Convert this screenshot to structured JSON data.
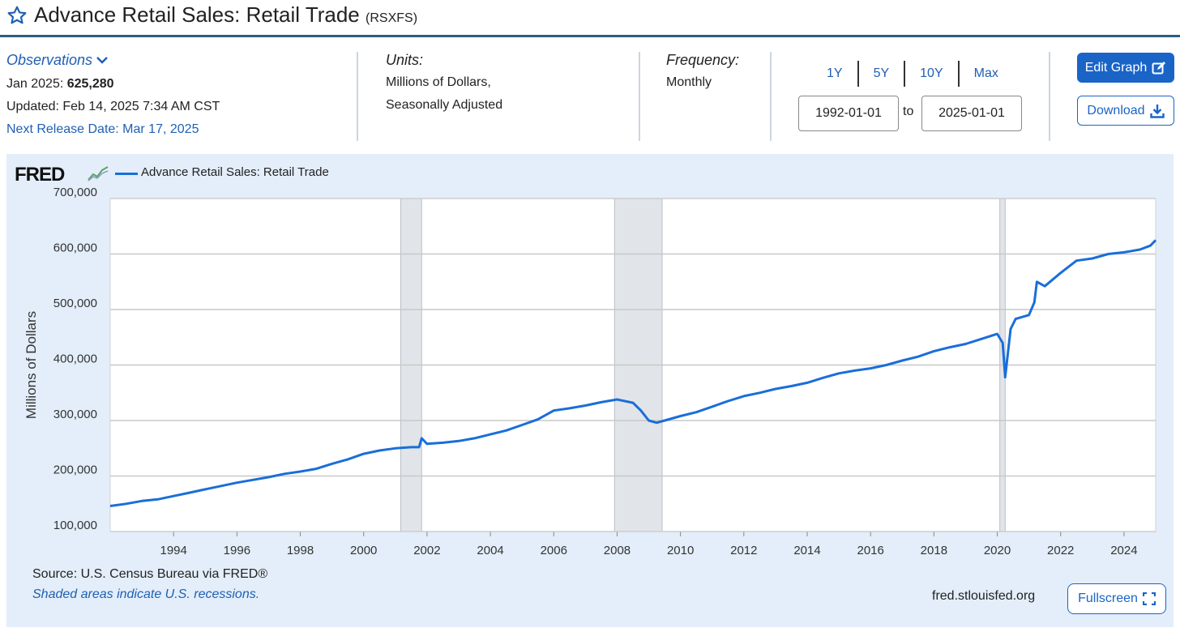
{
  "header": {
    "title": "Advance Retail Sales: Retail Trade",
    "series_id": "(RSXFS)"
  },
  "observations": {
    "label": "Observations",
    "latest_label": "Jan 2025:",
    "latest_value": "625,280",
    "updated": "Updated: Feb 14, 2025 7:34 AM CST",
    "next_release": "Next Release Date: Mar 17, 2025"
  },
  "units": {
    "label": "Units:",
    "line1": "Millions of Dollars,",
    "line2": "Seasonally Adjusted"
  },
  "frequency": {
    "label": "Frequency:",
    "value": "Monthly"
  },
  "ranges": [
    "1Y",
    "5Y",
    "10Y",
    "Max"
  ],
  "date_range": {
    "start": "1992-01-01",
    "to_label": "to",
    "end": "2025-01-01"
  },
  "buttons": {
    "edit_graph": "Edit Graph",
    "download": "Download",
    "fullscreen": "Fullscreen"
  },
  "footer": {
    "source": "Source: U.S. Census Bureau via FRED®",
    "shaded_note": "Shaded areas indicate U.S. recessions.",
    "url": "fred.stlouisfed.org"
  },
  "brand": {
    "logo_text": "FRED",
    "accent": "#1a64c8",
    "line_color": "#1a6ed8",
    "panel_bg": "#e3eefa",
    "recession_fill": "#e1e5e9"
  },
  "chart_data": {
    "type": "line",
    "title": "",
    "ylabel": "Millions of Dollars",
    "xlabel": "",
    "ylim": [
      100000,
      700000
    ],
    "xlim": [
      1992.0,
      2025.0
    ],
    "y_ticks": [
      "100,000",
      "200,000",
      "300,000",
      "400,000",
      "500,000",
      "600,000",
      "700,000"
    ],
    "x_ticks": [
      "1994",
      "1996",
      "1998",
      "2000",
      "2002",
      "2004",
      "2006",
      "2008",
      "2010",
      "2012",
      "2014",
      "2016",
      "2018",
      "2020",
      "2022",
      "2024"
    ],
    "grid": true,
    "legend": "top-left",
    "recessions": [
      [
        2001.17,
        2001.83
      ],
      [
        2007.92,
        2009.42
      ],
      [
        2020.08,
        2020.25
      ]
    ],
    "series": [
      {
        "name": "Advance Retail Sales: Retail Trade",
        "x": [
          1992.0,
          1992.5,
          1993.0,
          1993.5,
          1994.0,
          1994.5,
          1995.0,
          1995.5,
          1996.0,
          1996.5,
          1997.0,
          1997.5,
          1998.0,
          1998.5,
          1999.0,
          1999.5,
          2000.0,
          2000.5,
          2001.0,
          2001.5,
          2001.75,
          2001.83,
          2002.0,
          2002.5,
          2003.0,
          2003.5,
          2004.0,
          2004.5,
          2005.0,
          2005.5,
          2006.0,
          2006.5,
          2007.0,
          2007.5,
          2008.0,
          2008.5,
          2008.75,
          2009.0,
          2009.25,
          2009.5,
          2010.0,
          2010.5,
          2011.0,
          2011.5,
          2012.0,
          2012.5,
          2013.0,
          2013.5,
          2014.0,
          2014.5,
          2015.0,
          2015.5,
          2016.0,
          2016.5,
          2017.0,
          2017.5,
          2018.0,
          2018.5,
          2019.0,
          2019.5,
          2020.0,
          2020.17,
          2020.25,
          2020.42,
          2020.58,
          2021.0,
          2021.17,
          2021.25,
          2021.5,
          2022.0,
          2022.5,
          2023.0,
          2023.5,
          2024.0,
          2024.5,
          2024.83,
          2025.0
        ],
        "values": [
          146000,
          150000,
          155000,
          158000,
          164000,
          170000,
          176000,
          182000,
          188000,
          193000,
          198000,
          204000,
          208000,
          213000,
          222000,
          230000,
          240000,
          246000,
          250000,
          252000,
          252000,
          268000,
          258000,
          260000,
          263000,
          268000,
          275000,
          282000,
          292000,
          302000,
          318000,
          322000,
          327000,
          333000,
          338000,
          332000,
          318000,
          300000,
          296000,
          300000,
          308000,
          315000,
          325000,
          335000,
          344000,
          350000,
          357000,
          362000,
          368000,
          377000,
          385000,
          390000,
          394000,
          400000,
          408000,
          415000,
          425000,
          432000,
          438000,
          447000,
          456000,
          440000,
          378000,
          465000,
          483000,
          490000,
          513000,
          550000,
          542000,
          566000,
          588000,
          592000,
          600000,
          603000,
          608000,
          615000,
          625000
        ]
      }
    ]
  }
}
